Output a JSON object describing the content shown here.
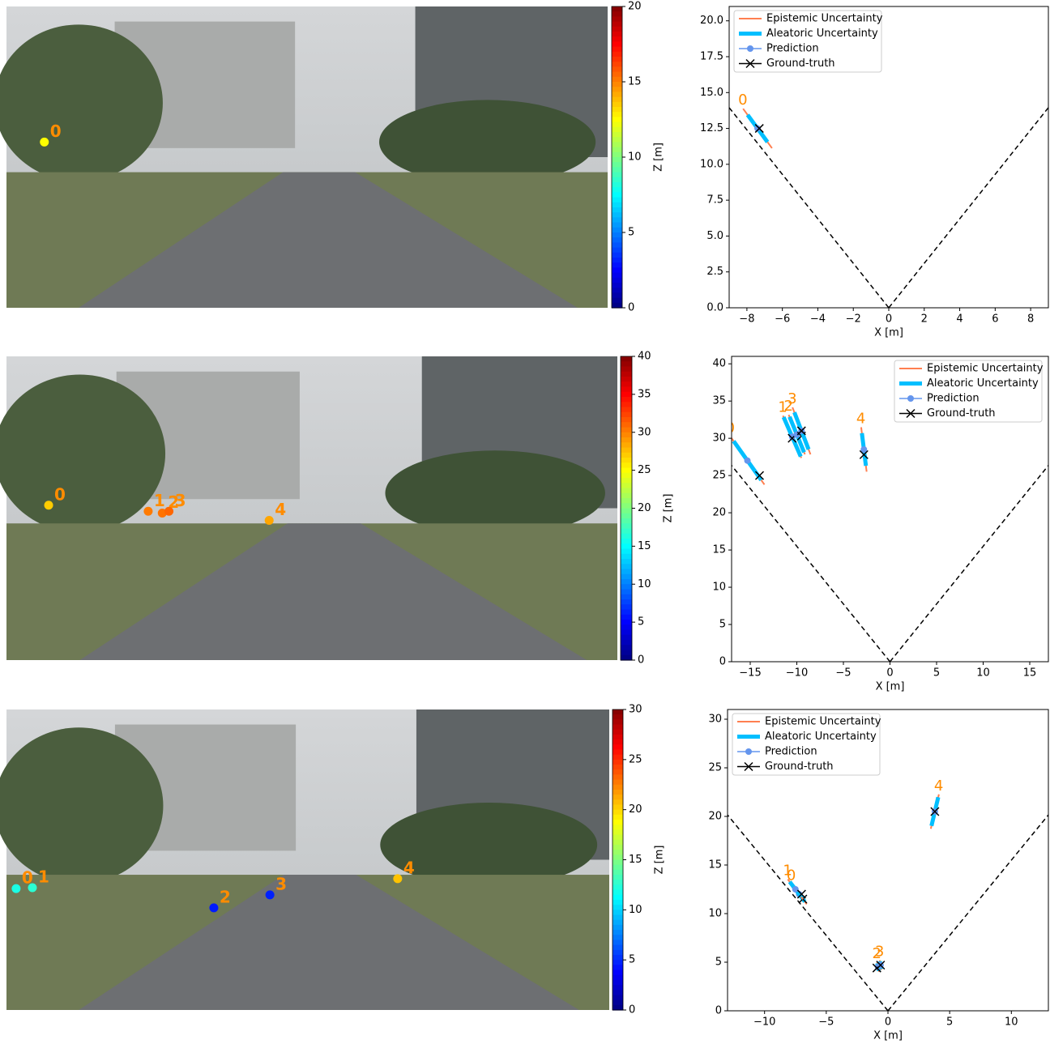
{
  "chart_data": [
    {
      "type": "bev",
      "colorbar_label": "Z [m]",
      "clim": [
        0,
        20
      ],
      "cticks": [
        0,
        5,
        10,
        15,
        20
      ],
      "xlabel": "X [m]",
      "xlim": [
        -9,
        9
      ],
      "xticks": [
        {
          "value": -8,
          "label": "−8"
        },
        {
          "value": -6,
          "label": "−6"
        },
        {
          "value": -4,
          "label": "−4"
        },
        {
          "value": -2,
          "label": "−2"
        },
        0,
        2,
        4,
        6,
        8
      ],
      "ylim": [
        0,
        21
      ],
      "yticks": [
        {
          "value": 0,
          "label": "0.0"
        },
        {
          "value": 2.5,
          "label": "2.5"
        },
        {
          "value": 5,
          "label": "5.0"
        },
        {
          "value": 7.5,
          "label": "7.5"
        },
        {
          "value": 10,
          "label": "10.0"
        },
        {
          "value": 12.5,
          "label": "12.5"
        },
        {
          "value": 15,
          "label": "15.0"
        },
        {
          "value": 17.5,
          "label": "17.5"
        },
        {
          "value": 20,
          "label": "20.0"
        }
      ],
      "legend_loc": "upper left",
      "legend": [
        {
          "name": "Epistemic Uncertainty",
          "color": "#ff7f50"
        },
        {
          "name": "Aleatoric Uncertainty",
          "color": "#00bfff"
        },
        {
          "name": "Prediction",
          "color": "#6495ed"
        },
        {
          "name": "Ground-truth",
          "color": "#000000"
        }
      ],
      "objects": {
        "labels": [
          "0"
        ],
        "x": [
          -7.4
        ],
        "z": [
          12.5
        ],
        "gt_x": [
          -7.3
        ],
        "gt_z": [
          12.5
        ],
        "epistemic": [
          1.6
        ],
        "aleatoric": [
          1.1
        ]
      }
    },
    {
      "type": "bev",
      "colorbar_label": "Z [m]",
      "clim": [
        0,
        40
      ],
      "cticks": [
        0,
        5,
        10,
        15,
        20,
        25,
        30,
        35,
        40
      ],
      "xlabel": "X [m]",
      "xlim": [
        -17,
        17
      ],
      "xticks": [
        {
          "value": -15,
          "label": "−15"
        },
        {
          "value": -10,
          "label": "−10"
        },
        {
          "value": -5,
          "label": "−5"
        },
        0,
        5,
        10,
        15
      ],
      "ylim": [
        0,
        41
      ],
      "yticks": [
        0,
        5,
        10,
        15,
        20,
        25,
        30,
        35,
        40
      ],
      "legend_loc": "upper right",
      "legend": [
        {
          "name": "Epistemic Uncertainty",
          "color": "#ff7f50"
        },
        {
          "name": "Aleatoric Uncertainty",
          "color": "#00bfff"
        },
        {
          "name": "Prediction",
          "color": "#6495ed"
        },
        {
          "name": "Ground-truth",
          "color": "#000000"
        }
      ],
      "objects": {
        "labels": [
          "0",
          "1",
          "2",
          "3",
          "4"
        ],
        "x": [
          -15.3,
          -10.5,
          -10.0,
          -9.5,
          -2.8
        ],
        "z": [
          27.0,
          30.2,
          30.5,
          31.0,
          28.5
        ],
        "gt_x": [
          -14.0,
          -10.5,
          -9.5,
          -9.5,
          -2.8
        ],
        "gt_z": [
          25.0,
          30.0,
          30.3,
          31.0,
          27.8
        ],
        "epistemic": [
          3.7,
          3.0,
          2.8,
          3.3,
          3.0
        ],
        "aleatoric": [
          3.0,
          2.8,
          2.5,
          2.6,
          2.2
        ]
      }
    },
    {
      "type": "bev",
      "colorbar_label": "Z [m]",
      "clim": [
        0,
        30
      ],
      "cticks": [
        0,
        5,
        10,
        15,
        20,
        25,
        30
      ],
      "xlabel": "X [m]",
      "xlim": [
        -13,
        13
      ],
      "xticks": [
        {
          "value": -10,
          "label": "−10"
        },
        {
          "value": -5,
          "label": "−5"
        },
        0,
        5,
        10
      ],
      "ylim": [
        0,
        31
      ],
      "yticks": [
        0,
        5,
        10,
        15,
        20,
        25,
        30
      ],
      "legend_loc": "upper left",
      "legend": [
        {
          "name": "Epistemic Uncertainty",
          "color": "#ff7f50"
        },
        {
          "name": "Aleatoric Uncertainty",
          "color": "#00bfff"
        },
        {
          "name": "Prediction",
          "color": "#6495ed"
        },
        {
          "name": "Ground-truth",
          "color": "#000000"
        }
      ],
      "objects": {
        "labels": [
          "0",
          "1",
          "2",
          "3",
          "4"
        ],
        "x": [
          -7.2,
          -7.5,
          -0.8,
          -0.6,
          3.8
        ],
        "z": [
          12.0,
          12.5,
          4.5,
          4.7,
          20.5
        ],
        "gt_x": [
          -6.9,
          -7.0,
          -0.9,
          -0.6,
          3.8
        ],
        "gt_z": [
          11.5,
          12.0,
          4.4,
          4.7,
          20.5
        ],
        "epistemic": [
          1.2,
          1.2,
          0.5,
          0.5,
          1.8
        ],
        "aleatoric": [
          0.9,
          0.9,
          0.4,
          0.4,
          1.5
        ]
      }
    }
  ]
}
